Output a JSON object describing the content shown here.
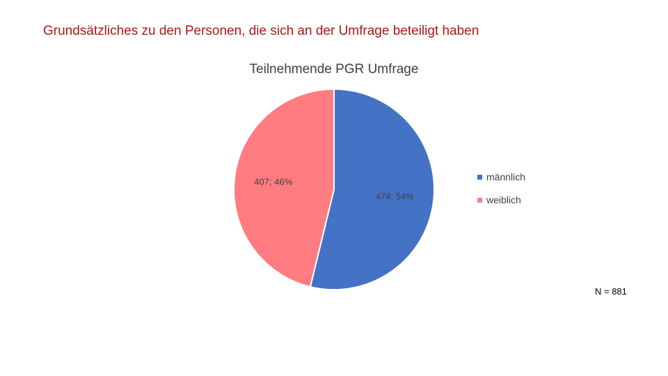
{
  "slide": {
    "title": "Grundsätzliches zu den Personen, die sich an der Umfrage beteiligt haben",
    "footnote": "N = 881"
  },
  "chart_data": {
    "type": "pie",
    "title": "Teilnehmende PGR Umfrage",
    "slices": [
      {
        "label": "männlich",
        "value": 474,
        "percent": 54,
        "data_label": "474; 54%",
        "color": "#4472c4"
      },
      {
        "label": "weiblich",
        "value": 407,
        "percent": 46,
        "data_label": "407; 46%",
        "color": "#ff7c80"
      }
    ],
    "total": 881,
    "legend": "right"
  }
}
